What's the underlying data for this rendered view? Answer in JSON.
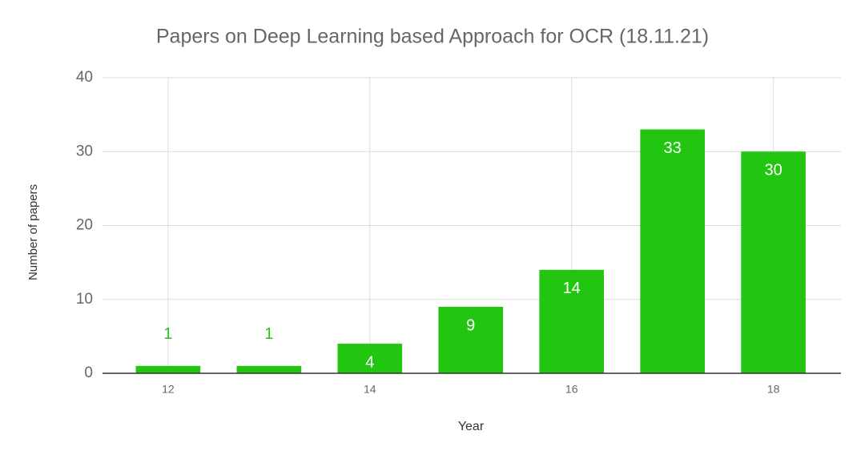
{
  "chart_data": {
    "type": "bar",
    "title": "Papers on Deep Learning based Approach for OCR (18.11.21)",
    "x_label": "Year",
    "y_label": "Number of papers",
    "x": [
      12,
      13,
      14,
      15,
      16,
      17,
      18
    ],
    "values": [
      1,
      1,
      4,
      9,
      14,
      33,
      30
    ],
    "color": "#22c50f",
    "xlim": [
      11.35,
      18.67
    ],
    "xticks": [
      12,
      14,
      16,
      18
    ],
    "ylim": [
      0,
      40
    ],
    "yticks": [
      0,
      10,
      20,
      30,
      40
    ],
    "grid": true
  }
}
